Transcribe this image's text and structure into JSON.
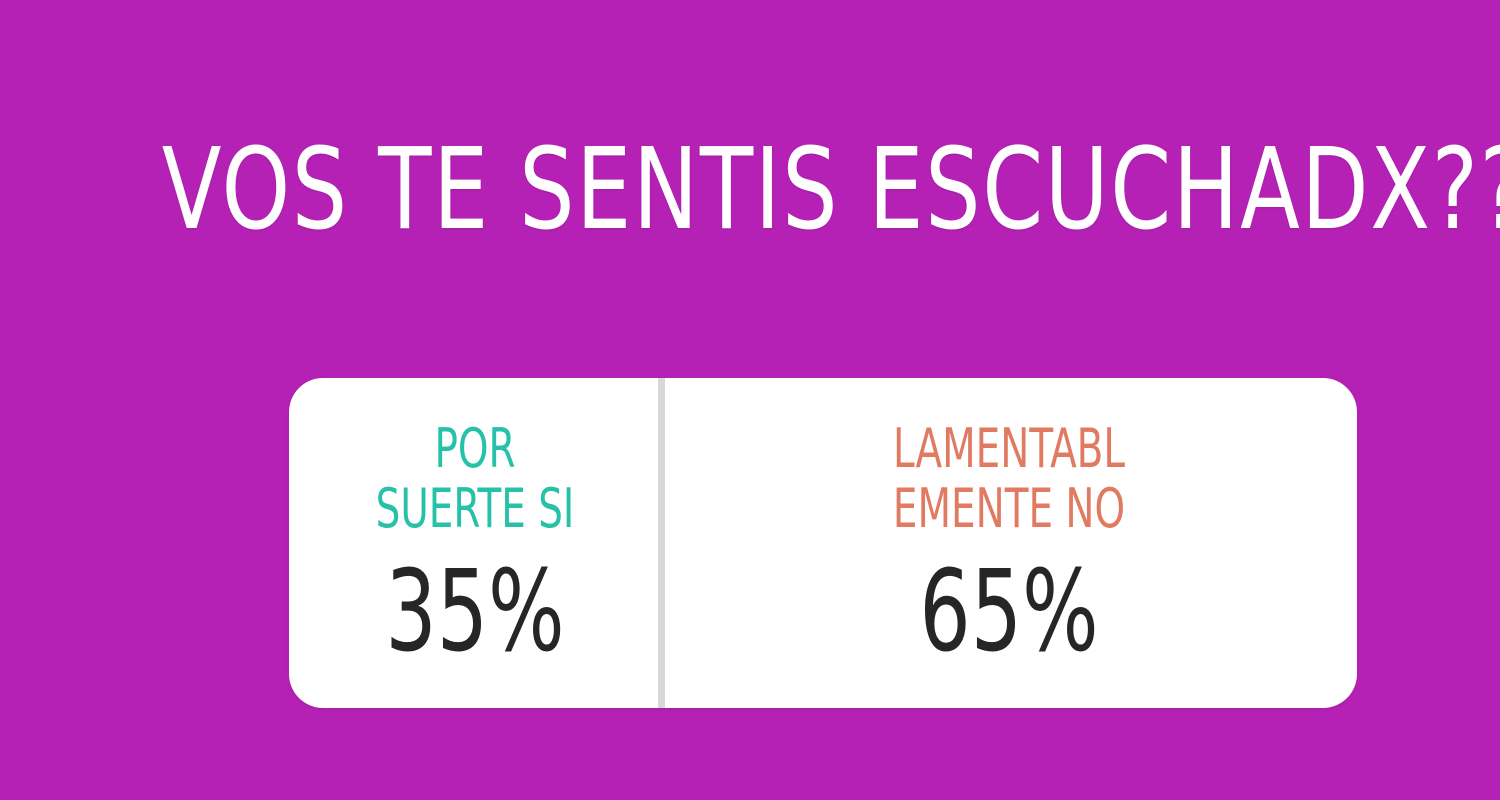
{
  "story": {
    "background_color": "#b521b5",
    "question": "VOS TE SENTIS ESCUCHADX??"
  },
  "poll": {
    "options": [
      {
        "label_lines": [
          "POR",
          "SUERTE SI"
        ],
        "percent": "35%",
        "value": 35,
        "color": "#27c1a8"
      },
      {
        "label_lines": [
          "LAMENTABL",
          "EMENTE NO"
        ],
        "percent": "65%",
        "value": 65,
        "color": "#e07b62"
      }
    ]
  }
}
